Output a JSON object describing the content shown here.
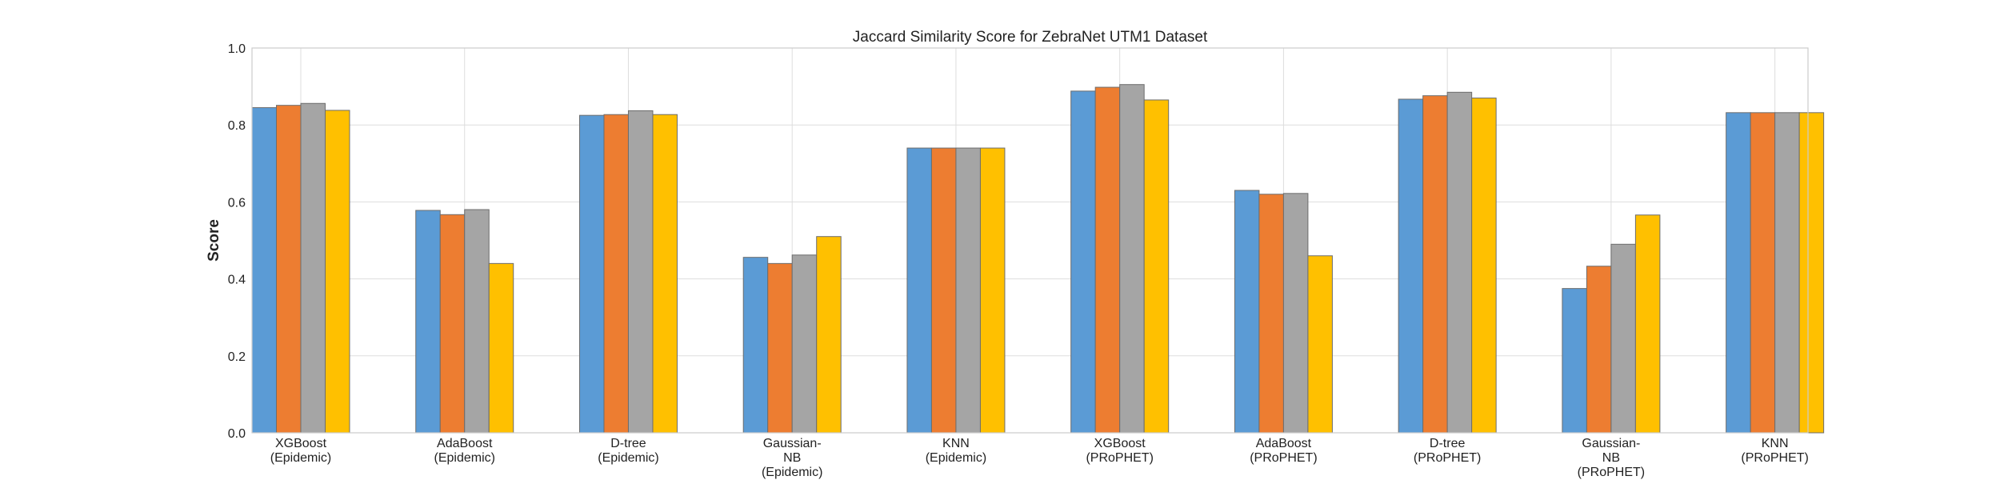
{
  "chart_data": {
    "type": "bar",
    "title": "Jaccard Similarity Score for ZebraNet UTM1 Dataset",
    "xlabel": "",
    "ylabel": "Score",
    "ylim": [
      0.0,
      1.0
    ],
    "yticks": [
      "0.0",
      "0.2",
      "0.4",
      "0.6",
      "0.8",
      "1.0"
    ],
    "grid": true,
    "legend": null,
    "categories": [
      [
        "XGBoost",
        "(Epidemic)"
      ],
      [
        "AdaBoost",
        "(Epidemic)"
      ],
      [
        "D-tree",
        "(Epidemic)"
      ],
      [
        "Gaussian-",
        "NB",
        "(Epidemic)"
      ],
      [
        "KNN",
        "(Epidemic)"
      ],
      [
        "XGBoost",
        "(PRoPHET)"
      ],
      [
        "AdaBoost",
        "(PRoPHET)"
      ],
      [
        "D-tree",
        "(PRoPHET)"
      ],
      [
        "Gaussian-",
        "NB",
        "(PRoPHET)"
      ],
      [
        "KNN",
        "(PRoPHET)"
      ]
    ],
    "series": [
      {
        "name": "series-1",
        "color": "#5b9bd5",
        "values": [
          0.845,
          0.578,
          0.825,
          0.456,
          0.74,
          0.888,
          0.63,
          0.867,
          0.375,
          0.832
        ]
      },
      {
        "name": "series-2",
        "color": "#ed7d31",
        "values": [
          0.851,
          0.567,
          0.827,
          0.44,
          0.74,
          0.898,
          0.62,
          0.876,
          0.433,
          0.832
        ]
      },
      {
        "name": "series-3",
        "color": "#a5a5a5",
        "values": [
          0.856,
          0.58,
          0.837,
          0.462,
          0.74,
          0.905,
          0.622,
          0.885,
          0.49,
          0.832
        ]
      },
      {
        "name": "series-4",
        "color": "#ffc000",
        "values": [
          0.838,
          0.44,
          0.827,
          0.51,
          0.74,
          0.865,
          0.46,
          0.87,
          0.566,
          0.832
        ]
      }
    ]
  }
}
